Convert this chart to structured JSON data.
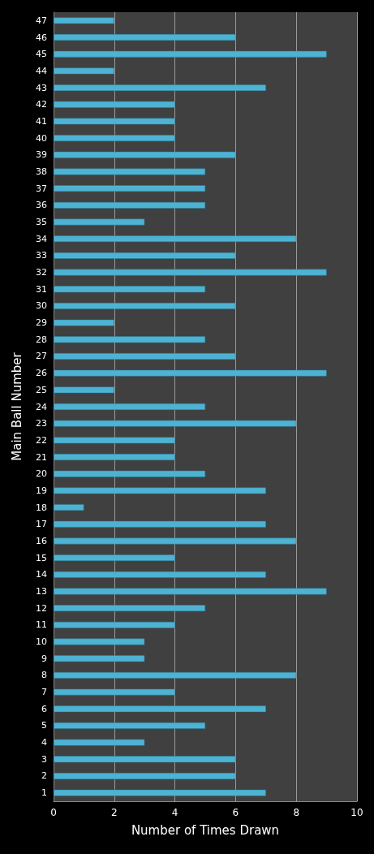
{
  "chart_data": {
    "type": "bar",
    "orientation": "horizontal",
    "xlabel": "Number of Times Drawn",
    "ylabel": "Main Ball Number",
    "categories": [
      "47",
      "46",
      "45",
      "44",
      "43",
      "42",
      "41",
      "40",
      "39",
      "38",
      "37",
      "36",
      "35",
      "34",
      "33",
      "32",
      "31",
      "30",
      "29",
      "28",
      "27",
      "26",
      "25",
      "24",
      "23",
      "22",
      "21",
      "20",
      "19",
      "18",
      "17",
      "16",
      "15",
      "14",
      "13",
      "12",
      "11",
      "10",
      "9",
      "8",
      "7",
      "6",
      "5",
      "4",
      "3",
      "2",
      "1"
    ],
    "values": [
      2,
      6,
      9,
      2,
      7,
      4,
      4,
      4,
      6,
      5,
      5,
      5,
      3,
      8,
      6,
      9,
      5,
      6,
      2,
      5,
      6,
      9,
      2,
      5,
      8,
      4,
      4,
      5,
      7,
      1,
      7,
      8,
      4,
      7,
      9,
      5,
      4,
      3,
      3,
      8,
      4,
      7,
      5,
      3,
      6,
      6,
      7
    ],
    "color": "#4eb3d3",
    "xlim": [
      0,
      10
    ],
    "xticks": [
      0,
      2,
      4,
      6,
      8,
      10
    ],
    "grid": "x"
  }
}
